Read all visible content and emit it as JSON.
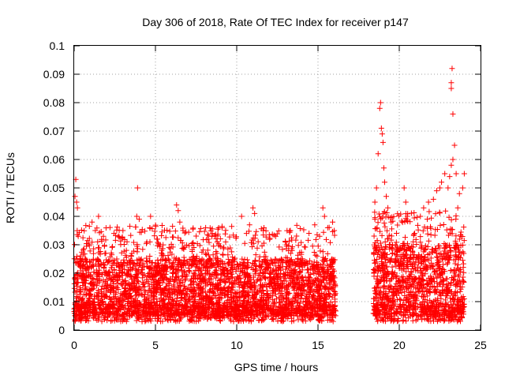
{
  "chart_data": {
    "type": "scatter",
    "title": "Day 306 of 2018, Rate Of TEC Index for receiver p147",
    "xlabel": "GPS time / hours",
    "ylabel": "ROTI / TECUs",
    "xlim": [
      0,
      25
    ],
    "ylim": [
      0,
      0.1
    ],
    "x_ticks": [
      0,
      5,
      10,
      15,
      20,
      25
    ],
    "x_tick_labels": [
      "0",
      "5",
      "10",
      "15",
      "20",
      "25"
    ],
    "y_ticks": [
      0,
      0.01,
      0.02,
      0.03,
      0.04,
      0.05,
      0.06,
      0.07,
      0.08,
      0.09,
      0.1
    ],
    "y_tick_labels": [
      "0",
      "0.01",
      "0.02",
      "0.03",
      "0.04",
      "0.05",
      "0.06",
      "0.07",
      "0.08",
      "0.09",
      "0.1"
    ],
    "grid": true,
    "marker": "+",
    "marker_color": "#ff0000",
    "data_segments": [
      {
        "x_range": [
          0.0,
          16.1
        ],
        "typical_range": [
          0.005,
          0.025
        ]
      },
      {
        "x_range": [
          18.4,
          24.0
        ],
        "typical_range": [
          0.005,
          0.03
        ]
      }
    ],
    "points": [
      [
        0.05,
        0.047
      ],
      [
        0.1,
        0.053
      ],
      [
        0.15,
        0.045
      ],
      [
        0.2,
        0.043
      ],
      [
        0.25,
        0.033
      ],
      [
        1.1,
        0.038
      ],
      [
        1.3,
        0.035
      ],
      [
        1.5,
        0.04
      ],
      [
        1.8,
        0.033
      ],
      [
        3.0,
        0.035
      ],
      [
        3.9,
        0.05
      ],
      [
        3.85,
        0.04
      ],
      [
        4.0,
        0.039
      ],
      [
        4.7,
        0.04
      ],
      [
        5.3,
        0.03
      ],
      [
        6.3,
        0.044
      ],
      [
        6.4,
        0.042
      ],
      [
        6.5,
        0.038
      ],
      [
        8.5,
        0.034
      ],
      [
        8.8,
        0.031
      ],
      [
        9.1,
        0.036
      ],
      [
        10.3,
        0.04
      ],
      [
        10.6,
        0.034
      ],
      [
        11.0,
        0.043
      ],
      [
        11.1,
        0.041
      ],
      [
        12.4,
        0.033
      ],
      [
        13.3,
        0.035
      ],
      [
        14.8,
        0.037
      ],
      [
        15.1,
        0.033
      ],
      [
        15.3,
        0.043
      ],
      [
        15.4,
        0.04
      ],
      [
        15.6,
        0.036
      ],
      [
        15.9,
        0.038
      ],
      [
        16.0,
        0.035
      ],
      [
        18.5,
        0.045
      ],
      [
        18.6,
        0.05
      ],
      [
        18.5,
        0.039
      ],
      [
        18.7,
        0.062
      ],
      [
        18.8,
        0.078
      ],
      [
        18.85,
        0.08
      ],
      [
        18.9,
        0.071
      ],
      [
        18.95,
        0.069
      ],
      [
        19.0,
        0.066
      ],
      [
        19.05,
        0.057
      ],
      [
        19.1,
        0.052
      ],
      [
        19.2,
        0.047
      ],
      [
        19.3,
        0.043
      ],
      [
        19.5,
        0.038
      ],
      [
        20.3,
        0.05
      ],
      [
        20.4,
        0.045
      ],
      [
        20.5,
        0.04
      ],
      [
        21.3,
        0.04
      ],
      [
        21.5,
        0.043
      ],
      [
        21.8,
        0.045
      ],
      [
        22.1,
        0.046
      ],
      [
        22.3,
        0.049
      ],
      [
        22.5,
        0.05
      ],
      [
        22.6,
        0.052
      ],
      [
        22.8,
        0.055
      ],
      [
        23.0,
        0.05
      ],
      [
        23.1,
        0.054
      ],
      [
        23.2,
        0.058
      ],
      [
        23.3,
        0.06
      ],
      [
        23.4,
        0.065
      ],
      [
        23.2,
        0.087
      ],
      [
        23.25,
        0.092
      ],
      [
        23.2,
        0.085
      ],
      [
        23.3,
        0.076
      ],
      [
        23.5,
        0.055
      ],
      [
        23.7,
        0.048
      ],
      [
        23.9,
        0.05
      ],
      [
        24.0,
        0.055
      ],
      [
        23.6,
        0.043
      ]
    ]
  }
}
